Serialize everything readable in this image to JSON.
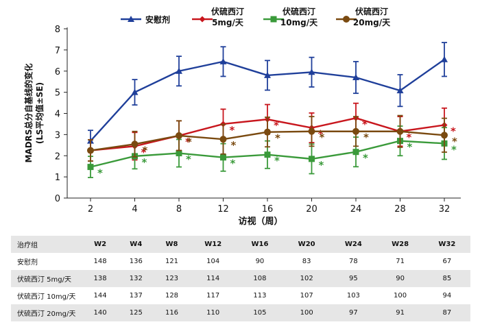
{
  "chart_data": {
    "type": "line",
    "ylabel_line1": "MADRS总分自基线的变化",
    "ylabel_line2": "(LS平均值±SE)",
    "xlabel": "访视（周）",
    "x": [
      2,
      4,
      8,
      12,
      16,
      20,
      24,
      28,
      32
    ],
    "ylim": [
      0,
      8
    ],
    "yticks": [
      0,
      1,
      2,
      3,
      4,
      5,
      6,
      7,
      8
    ],
    "series": [
      {
        "name": "安慰剂",
        "legend_lines": [
          "安慰剂"
        ],
        "color": "#1f3f9a",
        "marker": "triangle",
        "values": [
          2.7,
          5.0,
          6.0,
          6.45,
          5.8,
          5.95,
          5.7,
          5.08,
          6.55
        ],
        "err": [
          0.5,
          0.6,
          0.7,
          0.7,
          0.7,
          0.7,
          0.75,
          0.75,
          0.8
        ],
        "stars": [
          false,
          false,
          false,
          false,
          false,
          false,
          false,
          false,
          false
        ]
      },
      {
        "name": "伏硫西汀 5mg/天",
        "legend_lines": [
          "伏硫西汀",
          "5mg/天"
        ],
        "color": "#c8161d",
        "marker": "diamond",
        "values": [
          2.25,
          2.45,
          2.95,
          3.5,
          3.72,
          3.32,
          3.78,
          3.15,
          3.45
        ],
        "err": [
          0.5,
          0.65,
          0.7,
          0.7,
          0.7,
          0.7,
          0.7,
          0.7,
          0.8
        ],
        "stars": [
          false,
          true,
          true,
          true,
          true,
          true,
          true,
          true,
          true
        ]
      },
      {
        "name": "伏硫西汀 10mg/天",
        "legend_lines": [
          "伏硫西汀",
          "10mg/天"
        ],
        "color": "#3a9a3a",
        "marker": "square",
        "values": [
          1.47,
          1.98,
          2.12,
          1.92,
          2.05,
          1.85,
          2.18,
          2.7,
          2.58
        ],
        "err": [
          0.5,
          0.6,
          0.65,
          0.65,
          0.65,
          0.7,
          0.7,
          0.7,
          0.75
        ],
        "stars": [
          true,
          true,
          true,
          true,
          true,
          true,
          true,
          true,
          true
        ]
      },
      {
        "name": "伏硫西汀 20mg/天",
        "legend_lines": [
          "伏硫西汀",
          "20mg/天"
        ],
        "color": "#7a4a10",
        "marker": "circle",
        "values": [
          2.25,
          2.55,
          2.95,
          2.78,
          3.12,
          3.15,
          3.15,
          3.15,
          2.97
        ],
        "err": [
          0.5,
          0.6,
          0.7,
          0.7,
          0.7,
          0.7,
          0.7,
          0.75,
          0.8
        ],
        "stars": [
          false,
          true,
          true,
          true,
          true,
          true,
          true,
          false,
          true
        ]
      }
    ],
    "star_label": "*"
  },
  "table": {
    "corner": "治疗组",
    "headers": [
      "W2",
      "W4",
      "W8",
      "W12",
      "W16",
      "W20",
      "W24",
      "W28",
      "W32"
    ],
    "rows": [
      {
        "label": "安慰剂",
        "values": [
          148,
          136,
          121,
          104,
          90,
          83,
          78,
          71,
          67
        ]
      },
      {
        "label": "伏硫西汀 5mg/天",
        "values": [
          138,
          132,
          123,
          114,
          108,
          102,
          95,
          90,
          85
        ]
      },
      {
        "label": "伏硫西汀 10mg/天",
        "values": [
          144,
          137,
          128,
          117,
          113,
          107,
          103,
          100,
          94
        ]
      },
      {
        "label": "伏硫西汀 20mg/天",
        "values": [
          140,
          125,
          116,
          110,
          105,
          100,
          97,
          91,
          87
        ]
      }
    ]
  }
}
